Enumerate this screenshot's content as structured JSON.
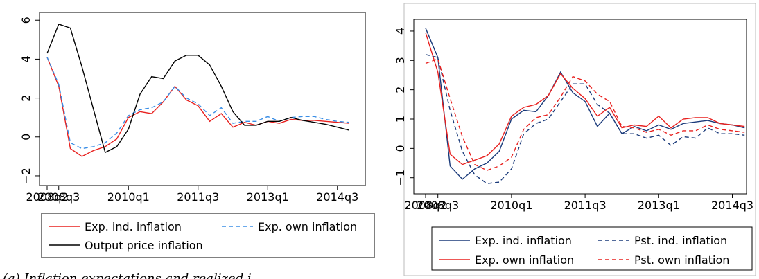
{
  "chart_data": [
    {
      "type": "line",
      "categories": [
        "2008q2",
        "2008q3",
        null,
        null,
        null,
        null,
        null,
        "2010q1",
        null,
        null,
        null,
        null,
        null,
        "2011q3",
        null,
        null,
        null,
        null,
        null,
        "2013q1",
        null,
        null,
        null,
        null,
        null,
        "2014q3",
        null
      ],
      "ylim": [
        -2.5,
        6.4
      ],
      "yticks": [
        {
          "value": -2,
          "label": "−2"
        },
        0,
        2,
        4,
        6
      ],
      "caption": "(a) Inflation expectations and realized i",
      "series": [
        {
          "name": "Exp. ind. inflation",
          "color": "#e8211f",
          "dash": false,
          "values": [
            4.1,
            2.6,
            -0.6,
            -1.0,
            -0.7,
            -0.5,
            -0.1,
            1.0,
            1.3,
            1.2,
            1.8,
            2.6,
            1.9,
            1.6,
            0.8,
            1.2,
            0.5,
            0.75,
            0.6,
            0.8,
            0.7,
            0.9,
            0.85,
            0.85,
            0.8,
            0.75,
            0.7
          ]
        },
        {
          "name": "Exp. own inflation",
          "color": "#3a8ee6",
          "dash": true,
          "values": [
            4.1,
            2.7,
            -0.3,
            -0.6,
            -0.5,
            -0.3,
            0.2,
            1.1,
            1.4,
            1.5,
            1.8,
            2.6,
            2.0,
            1.7,
            1.1,
            1.5,
            0.7,
            0.8,
            0.8,
            1.05,
            0.8,
            1.0,
            1.05,
            1.05,
            0.9,
            0.8,
            0.75
          ]
        },
        {
          "name": "Output price inflation",
          "color": "#000000",
          "dash": false,
          "values": [
            4.3,
            5.8,
            5.6,
            3.6,
            1.4,
            -0.8,
            -0.5,
            0.4,
            2.2,
            3.1,
            3.0,
            3.9,
            4.2,
            4.2,
            3.7,
            2.6,
            1.3,
            0.6,
            0.6,
            0.8,
            0.8,
            1.0,
            0.85,
            0.75,
            0.65,
            0.5,
            0.35
          ]
        }
      ]
    },
    {
      "type": "line",
      "categories": [
        "2008q2",
        "2008q3",
        null,
        null,
        null,
        null,
        null,
        "2010q1",
        null,
        null,
        null,
        null,
        null,
        "2011q3",
        null,
        null,
        null,
        null,
        null,
        "2013q1",
        null,
        null,
        null,
        null,
        null,
        "2014q3",
        null
      ],
      "ylim": [
        -1.55,
        4.4
      ],
      "yticks": [
        {
          "value": -1,
          "label": "−1"
        },
        0,
        1,
        2,
        3,
        4
      ],
      "series": [
        {
          "name": "Exp. ind. inflation",
          "color": "#1a3a7a",
          "dash": false,
          "values": [
            4.1,
            3.1,
            -0.6,
            -1.05,
            -0.7,
            -0.5,
            -0.1,
            1.0,
            1.3,
            1.25,
            1.8,
            2.6,
            1.9,
            1.6,
            0.75,
            1.2,
            0.5,
            0.75,
            0.6,
            0.8,
            0.65,
            0.85,
            0.9,
            0.95,
            0.85,
            0.8,
            0.7
          ]
        },
        {
          "name": "Pst. ind. inflation",
          "color": "#1a3a7a",
          "dash": true,
          "values": [
            3.2,
            3.1,
            1.3,
            -0.1,
            -0.9,
            -1.2,
            -1.15,
            -0.7,
            0.5,
            0.85,
            1.0,
            1.6,
            2.2,
            2.2,
            1.5,
            1.2,
            0.5,
            0.5,
            0.35,
            0.45,
            0.1,
            0.4,
            0.35,
            0.7,
            0.5,
            0.5,
            0.45
          ]
        },
        {
          "name": "Exp. own inflation",
          "color": "#e8211f",
          "dash": false,
          "values": [
            3.95,
            2.6,
            -0.2,
            -0.55,
            -0.4,
            -0.25,
            0.15,
            1.1,
            1.4,
            1.5,
            1.8,
            2.55,
            2.05,
            1.7,
            1.1,
            1.4,
            0.7,
            0.8,
            0.75,
            1.1,
            0.7,
            1.0,
            1.05,
            1.05,
            0.85,
            0.8,
            0.75
          ]
        },
        {
          "name": "Pst. own inflation",
          "color": "#e8211f",
          "dash": true,
          "values": [
            2.9,
            3.05,
            1.7,
            0.4,
            -0.55,
            -0.75,
            -0.6,
            -0.3,
            0.65,
            1.05,
            1.15,
            1.75,
            2.45,
            2.3,
            1.85,
            1.6,
            0.75,
            0.7,
            0.55,
            0.65,
            0.45,
            0.6,
            0.6,
            0.8,
            0.65,
            0.6,
            0.55
          ]
        }
      ]
    }
  ]
}
